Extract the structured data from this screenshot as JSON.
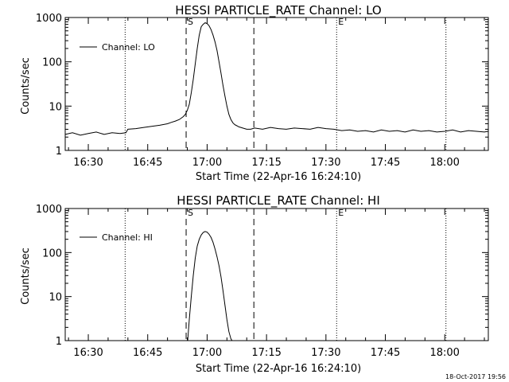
{
  "chart_data": [
    {
      "type": "line",
      "title": "HESSI PARTICLE_RATE Channel: LO",
      "xlabel": "Start Time (22-Apr-16 16:24:10)",
      "ylabel": "Counts/sec",
      "y_scale": "log",
      "ylim": [
        1,
        1000
      ],
      "xlim_minutes": [
        984.17,
        1091.0
      ],
      "x_ticks": [
        990,
        1005,
        1020,
        1035,
        1050,
        1065,
        1080
      ],
      "x_tick_labels": [
        "16:30",
        "16:45",
        "17:00",
        "17:15",
        "17:30",
        "17:45",
        "18:00"
      ],
      "y_ticks": [
        1,
        10,
        100,
        1000
      ],
      "y_tick_labels": [
        "1",
        "10",
        "100",
        "1000"
      ],
      "legend": "top-left",
      "grid": false,
      "markers": [
        {
          "x": 999.3,
          "style": "dotted",
          "label": ""
        },
        {
          "x": 1014.7,
          "style": "dashed",
          "label": "S"
        },
        {
          "x": 1031.8,
          "style": "dashed",
          "label": ""
        },
        {
          "x": 1052.7,
          "style": "dotted",
          "label": "E"
        },
        {
          "x": 1080.3,
          "style": "dotted",
          "label": ""
        }
      ],
      "series": [
        {
          "name": "Channel: LO",
          "x": [
            984.2,
            986,
            988,
            990,
            992,
            994,
            996,
            998,
            999.5,
            1000,
            1002,
            1004,
            1006,
            1008,
            1010,
            1011,
            1012,
            1013,
            1014,
            1014.5,
            1015,
            1015.5,
            1016,
            1016.5,
            1017,
            1017.5,
            1018,
            1018.5,
            1019,
            1019.5,
            1020,
            1020.5,
            1021,
            1021.5,
            1022,
            1022.5,
            1023,
            1023.5,
            1024,
            1024.5,
            1025,
            1025.5,
            1026,
            1026.5,
            1027,
            1027.5,
            1028,
            1028.5,
            1029,
            1029.5,
            1030,
            1030.5,
            1031,
            1032,
            1034,
            1036,
            1038,
            1040,
            1042,
            1044,
            1046,
            1048,
            1050,
            1052,
            1054,
            1056,
            1058,
            1060,
            1062,
            1064,
            1066,
            1068,
            1070,
            1072,
            1074,
            1076,
            1078,
            1080,
            1082,
            1084,
            1086,
            1088,
            1090,
            1091
          ],
          "y": [
            2.3,
            2.5,
            2.2,
            2.4,
            2.6,
            2.3,
            2.5,
            2.4,
            2.5,
            3.0,
            3.1,
            3.3,
            3.5,
            3.7,
            4.0,
            4.3,
            4.6,
            5.0,
            5.8,
            6.5,
            8.0,
            11,
            20,
            40,
            90,
            200,
            400,
            620,
            700,
            760,
            730,
            650,
            530,
            400,
            280,
            180,
            100,
            55,
            30,
            17,
            10,
            6.5,
            5.0,
            4.2,
            3.8,
            3.6,
            3.4,
            3.3,
            3.2,
            3.1,
            3.0,
            3.0,
            3.0,
            3.2,
            3.0,
            3.3,
            3.1,
            3.0,
            3.2,
            3.1,
            3.0,
            3.3,
            3.1,
            3.0,
            2.8,
            2.9,
            2.7,
            2.8,
            2.6,
            2.9,
            2.7,
            2.8,
            2.6,
            2.9,
            2.7,
            2.8,
            2.6,
            2.7,
            2.9,
            2.6,
            2.8,
            2.7,
            2.6,
            2.7
          ]
        }
      ]
    },
    {
      "type": "line",
      "title": "HESSI PARTICLE_RATE Channel: HI",
      "xlabel": "Start Time (22-Apr-16 16:24:10)",
      "ylabel": "Counts/sec",
      "y_scale": "log",
      "ylim": [
        1,
        1000
      ],
      "xlim_minutes": [
        984.17,
        1091.0
      ],
      "x_ticks": [
        990,
        1005,
        1020,
        1035,
        1050,
        1065,
        1080
      ],
      "x_tick_labels": [
        "16:30",
        "16:45",
        "17:00",
        "17:15",
        "17:30",
        "17:45",
        "18:00"
      ],
      "y_ticks": [
        1,
        10,
        100,
        1000
      ],
      "y_tick_labels": [
        "1",
        "10",
        "100",
        "1000"
      ],
      "legend": "top-left",
      "grid": false,
      "markers": [
        {
          "x": 999.3,
          "style": "dotted",
          "label": ""
        },
        {
          "x": 1014.7,
          "style": "dashed",
          "label": "S"
        },
        {
          "x": 1031.8,
          "style": "dashed",
          "label": ""
        },
        {
          "x": 1052.7,
          "style": "dotted",
          "label": "E"
        },
        {
          "x": 1080.3,
          "style": "dotted",
          "label": ""
        }
      ],
      "series": [
        {
          "name": "Channel: HI",
          "x": [
            1015.1,
            1015.5,
            1016,
            1016.5,
            1017,
            1017.5,
            1018,
            1018.5,
            1019,
            1019.5,
            1020,
            1020.5,
            1021,
            1021.5,
            1022,
            1022.5,
            1023,
            1023.5,
            1024,
            1024.5,
            1025,
            1025.5,
            1026,
            1026.3
          ],
          "y": [
            1.0,
            3.0,
            10,
            30,
            75,
            140,
            200,
            250,
            285,
            300,
            290,
            260,
            220,
            170,
            120,
            80,
            50,
            28,
            14,
            6.5,
            3.0,
            1.6,
            1.1,
            1.0
          ]
        }
      ]
    }
  ],
  "footer": {
    "timestamp": "18-Oct-2017 19:56"
  }
}
